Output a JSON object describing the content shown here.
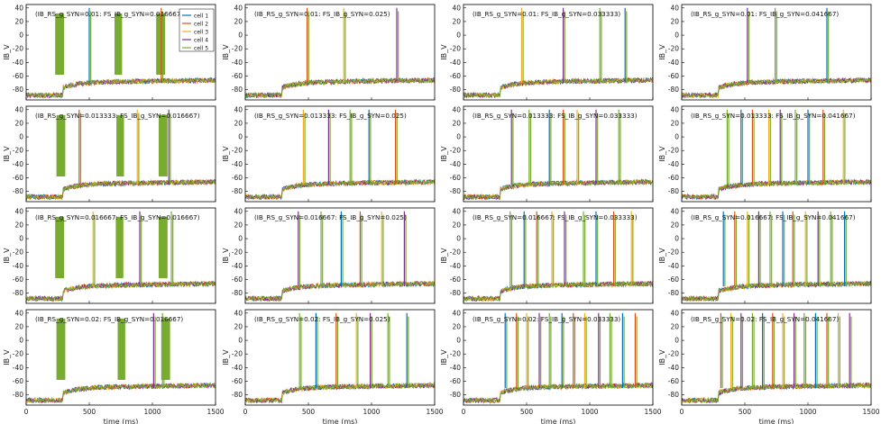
{
  "figure": {
    "xlabel": "time (ms)",
    "ylabel": "IB_V"
  },
  "chart_data": {
    "type": "line",
    "xlim": [
      0,
      1500
    ],
    "ylim": [
      -95,
      45
    ],
    "xticks": [
      0,
      500,
      1000,
      1500
    ],
    "yticks": [
      -80,
      -60,
      -40,
      -20,
      0,
      20,
      40
    ],
    "xlabel": "time (ms)",
    "ylabel": "IB_V",
    "legend": {
      "placement": "top-right",
      "in_panel": 0,
      "entries": [
        "cell 1",
        "cell 2",
        "cell 3",
        "cell 4",
        "cell 5"
      ]
    },
    "series_colors": [
      "#0072bd",
      "#d95319",
      "#edb120",
      "#7e2f8e",
      "#77ac30"
    ],
    "panels": [
      {
        "label": "(IB_RS_g_SYN=0.01: FS_IB_g_SYN=0.016667)",
        "ib_rs": 0.01,
        "fs_ib": 0.016667
      },
      {
        "label": "(IB_RS_g_SYN=0.01: FS_IB_g_SYN=0.025)",
        "ib_rs": 0.01,
        "fs_ib": 0.025
      },
      {
        "label": "(IB_RS_g_SYN=0.01: FS_IB_g_SYN=0.033333)",
        "ib_rs": 0.01,
        "fs_ib": 0.033333
      },
      {
        "label": "(IB_RS_g_SYN=0.01: FS_IB_g_SYN=0.041667)",
        "ib_rs": 0.01,
        "fs_ib": 0.041667
      },
      {
        "label": "(IB_RS_g_SYN=0.013333: FS_IB_g_SYN=0.016667)",
        "ib_rs": 0.013333,
        "fs_ib": 0.016667
      },
      {
        "label": "(IB_RS_g_SYN=0.013333: FS_IB_g_SYN=0.025)",
        "ib_rs": 0.013333,
        "fs_ib": 0.025
      },
      {
        "label": "(IB_RS_g_SYN=0.013333: FS_IB_g_SYN=0.033333)",
        "ib_rs": 0.013333,
        "fs_ib": 0.033333
      },
      {
        "label": "(IB_RS_g_SYN=0.013333: FS_IB_g_SYN=0.041667)",
        "ib_rs": 0.013333,
        "fs_ib": 0.041667
      },
      {
        "label": "(IB_RS_g_SYN=0.016667: FS_IB_g_SYN=0.016667)",
        "ib_rs": 0.016667,
        "fs_ib": 0.016667
      },
      {
        "label": "(IB_RS_g_SYN=0.016667: FS_IB_g_SYN=0.025)",
        "ib_rs": 0.016667,
        "fs_ib": 0.025
      },
      {
        "label": "(IB_RS_g_SYN=0.016667: FS_IB_g_SYN=0.033333)",
        "ib_rs": 0.016667,
        "fs_ib": 0.033333
      },
      {
        "label": "(IB_RS_g_SYN=0.016667: FS_IB_g_SYN=0.041667)",
        "ib_rs": 0.016667,
        "fs_ib": 0.041667
      },
      {
        "label": "(IB_RS_g_SYN=0.02: FS_IB_g_SYN=0.016667)",
        "ib_rs": 0.02,
        "fs_ib": 0.016667
      },
      {
        "label": "(IB_RS_g_SYN=0.02: FS_IB_g_SYN=0.025)",
        "ib_rs": 0.02,
        "fs_ib": 0.025
      },
      {
        "label": "(IB_RS_g_SYN=0.02: FS_IB_g_SYN=0.033333)",
        "ib_rs": 0.02,
        "fs_ib": 0.033333
      },
      {
        "label": "(IB_RS_g_SYN=0.02: FS_IB_g_SYN=0.041667)",
        "ib_rs": 0.02,
        "fs_ib": 0.041667
      }
    ],
    "traces": {
      "resting_before_stimulus_mV": -88,
      "plateau_after_stimulus_mV": -70,
      "stimulus_onset_ms": 290,
      "spike_peak_mV": 40,
      "burst_epochs_col1_ms": [
        [
          230,
          300
        ],
        [
          700,
          760
        ],
        [
          1030,
          1100
        ]
      ],
      "spike_times_ms": [
        [
          [
            500,
            1070
          ],
          [
            490,
            780,
            1200
          ],
          [
            460,
            790,
            1080,
            1280
          ],
          [
            520,
            740,
            1150
          ]
        ],
        [
          [
            420,
            880,
            1130
          ],
          [
            460,
            660,
            830,
            980,
            1190
          ],
          [
            380,
            520,
            680,
            790,
            900,
            1050,
            1230
          ],
          [
            360,
            470,
            560,
            690,
            780,
            900,
            1000,
            1120,
            1280
          ]
        ],
        [
          [
            530,
            900,
            1150
          ],
          [
            420,
            600,
            760,
            910,
            1080,
            1260
          ],
          [
            370,
            480,
            580,
            700,
            800,
            950,
            1050,
            1190,
            1330
          ],
          [
            330,
            420,
            520,
            610,
            700,
            800,
            880,
            980,
            1080,
            1180,
            1290
          ]
        ],
        [
          [
            1010,
            1080
          ],
          [
            430,
            560,
            720,
            880,
            990,
            1130,
            1280
          ],
          [
            330,
            420,
            500,
            600,
            680,
            780,
            870,
            960,
            1070,
            1160,
            1260,
            1360
          ],
          [
            310,
            390,
            470,
            560,
            640,
            720,
            800,
            890,
            970,
            1060,
            1150,
            1240,
            1330
          ]
        ]
      ]
    }
  }
}
